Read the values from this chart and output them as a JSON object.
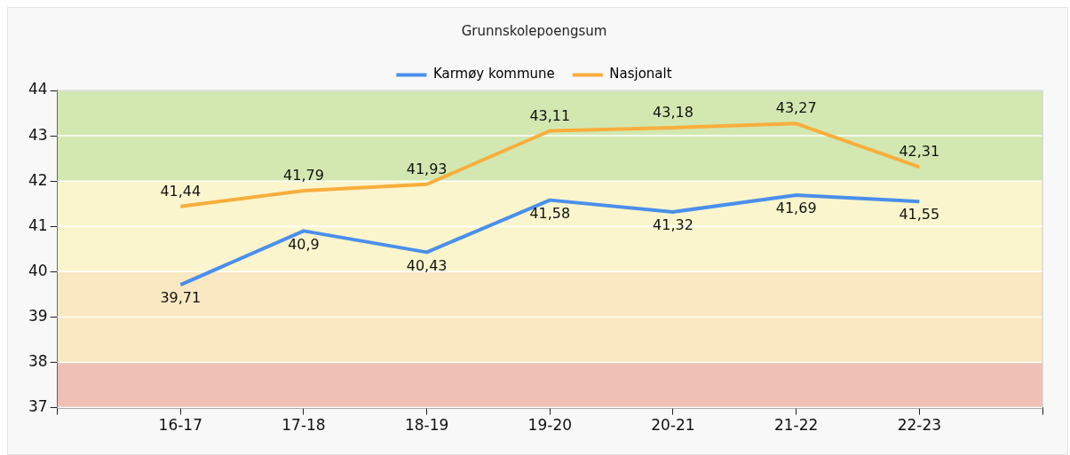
{
  "chart_data": {
    "type": "line",
    "title": "Grunnskolepoengsum",
    "categories": [
      null,
      "16-17",
      "17-18",
      "18-19",
      "19-20",
      "20-21",
      "21-22",
      "22-23",
      null
    ],
    "series": [
      {
        "name": "Karmøy kommune",
        "color": "#4a8fec",
        "values": [
          null,
          39.71,
          40.9,
          40.43,
          41.58,
          41.32,
          41.69,
          41.55,
          null
        ],
        "value_labels": [
          null,
          "39,71",
          "40,9",
          "40,43",
          "41,58",
          "41,32",
          "41,69",
          "41,55",
          null
        ]
      },
      {
        "name": "Nasjonalt",
        "color": "#f8ae3c",
        "values": [
          null,
          41.44,
          41.79,
          41.93,
          43.11,
          43.18,
          43.27,
          42.31,
          null
        ],
        "value_labels": [
          null,
          "41,44",
          "41,79",
          "41,93",
          "43,11",
          "43,18",
          "43,27",
          "42,31",
          null
        ]
      }
    ],
    "ylim": [
      37,
      44
    ],
    "yticks": [
      37,
      38,
      39,
      40,
      41,
      42,
      43,
      44
    ],
    "bands": [
      {
        "axis": "y",
        "from": 37,
        "to": 38,
        "color": "#efc1b6"
      },
      {
        "axis": "y",
        "from": 38,
        "to": 40,
        "color": "#fae8c2"
      },
      {
        "axis": "y",
        "from": 40,
        "to": 42,
        "color": "#faf5cc"
      },
      {
        "axis": "y",
        "from": 42,
        "to": 44,
        "color": "#d3e8b0"
      }
    ],
    "grid": "y",
    "legend": "top",
    "marker": "none",
    "line_style": "solid"
  }
}
